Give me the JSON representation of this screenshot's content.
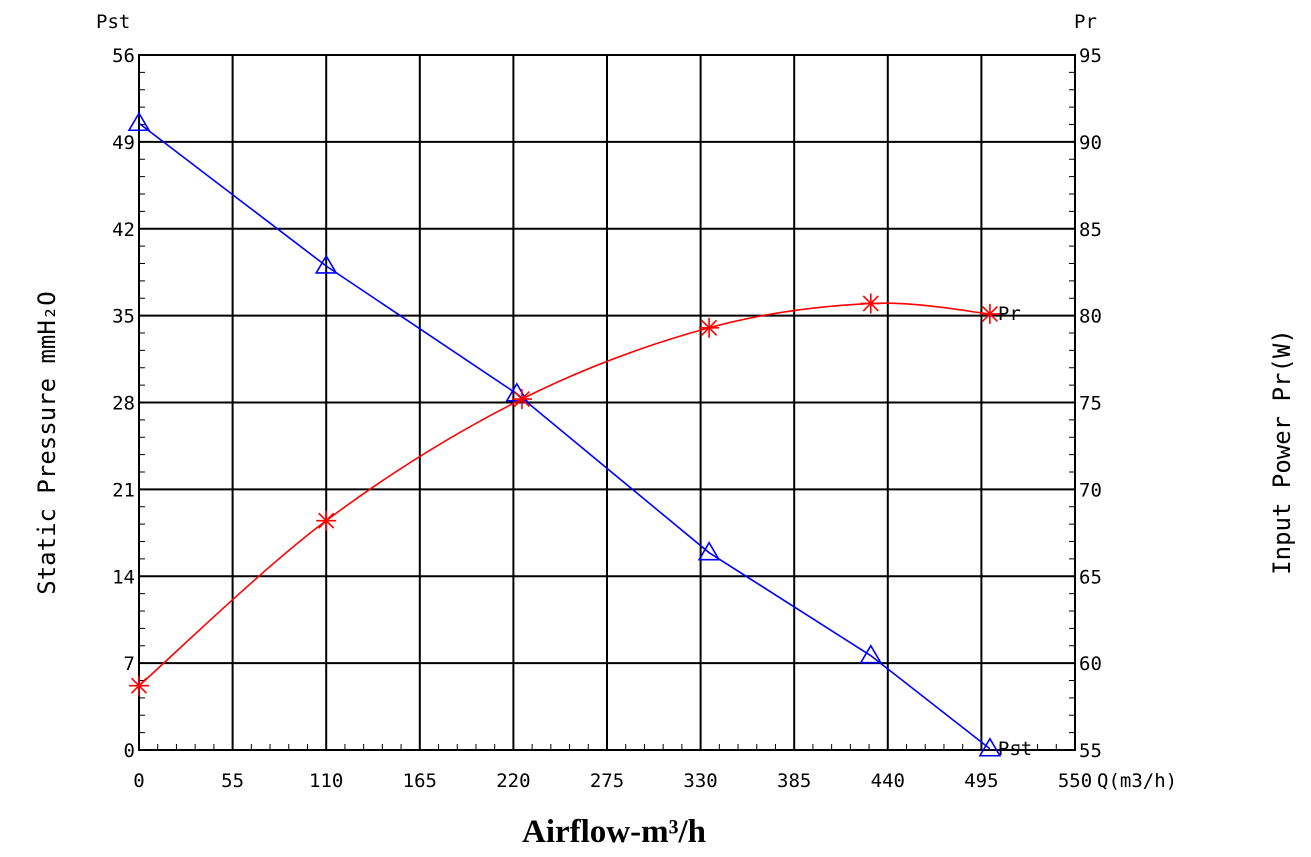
{
  "chart_data": {
    "type": "line",
    "xlabel": "Airflow-m³/h",
    "x_axis_unit_label": "Q(m3/h)",
    "left_axis": {
      "symbol": "Pst",
      "title": "Static Pressure mmH₂O",
      "ylim": [
        0,
        56
      ],
      "ticks": [
        "0",
        "7",
        "14",
        "21",
        "28",
        "35",
        "42",
        "49",
        "56"
      ]
    },
    "right_axis": {
      "symbol": "Pr",
      "title": "Input Power Pr(W)",
      "ylim": [
        55,
        95
      ],
      "ticks": [
        "55",
        "60",
        "65",
        "70",
        "75",
        "80",
        "85",
        "90",
        "95"
      ]
    },
    "xlim": [
      0,
      550
    ],
    "x_ticks": [
      "0",
      "55",
      "110",
      "165",
      "220",
      "275",
      "330",
      "385",
      "440",
      "495",
      "550"
    ],
    "grid": true,
    "series": [
      {
        "name": "Pst",
        "axis": "left",
        "color": "#0000ff",
        "marker": "triangle",
        "x": [
          0,
          110,
          222,
          335,
          430,
          500
        ],
        "y": [
          50.5,
          39,
          28.7,
          15.9,
          7.6,
          0.1
        ],
        "end_label": "Pst"
      },
      {
        "name": "Pr",
        "axis": "right",
        "color": "#ff0000",
        "marker": "asterisk",
        "x": [
          0,
          110,
          225,
          335,
          430,
          500
        ],
        "y": [
          58.7,
          68.2,
          75.2,
          79.3,
          80.7,
          80.1
        ],
        "end_label": "Pr"
      }
    ]
  }
}
